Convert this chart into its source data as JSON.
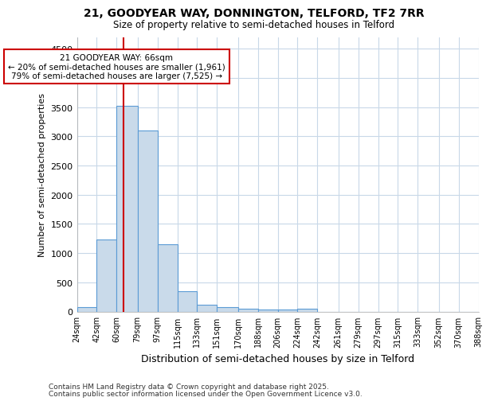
{
  "title1": "21, GOODYEAR WAY, DONNINGTON, TELFORD, TF2 7RR",
  "title2": "Size of property relative to semi-detached houses in Telford",
  "xlabel": "Distribution of semi-detached houses by size in Telford",
  "ylabel": "Number of semi-detached properties",
  "bin_labels": [
    "24sqm",
    "42sqm",
    "60sqm",
    "79sqm",
    "97sqm",
    "115sqm",
    "133sqm",
    "151sqm",
    "170sqm",
    "188sqm",
    "206sqm",
    "224sqm",
    "242sqm",
    "261sqm",
    "279sqm",
    "297sqm",
    "315sqm",
    "333sqm",
    "352sqm",
    "370sqm",
    "388sqm"
  ],
  "bin_edges": [
    24,
    42,
    60,
    79,
    97,
    115,
    133,
    151,
    170,
    188,
    206,
    224,
    242,
    261,
    279,
    297,
    315,
    333,
    352,
    370,
    388
  ],
  "bar_heights": [
    75,
    1230,
    3520,
    3100,
    1150,
    345,
    115,
    70,
    45,
    40,
    30,
    45,
    0,
    0,
    0,
    0,
    0,
    0,
    0,
    0
  ],
  "bar_color": "#c9daea",
  "bar_edge_color": "#5b9bd5",
  "property_sqm": 66,
  "annotation_line1": "21 GOODYEAR WAY: 66sqm",
  "annotation_line2": "← 20% of semi-detached houses are smaller (1,961)",
  "annotation_line3": "79% of semi-detached houses are larger (7,525) →",
  "red_line_color": "#cc0000",
  "annotation_box_color": "#ffffff",
  "annotation_box_edge": "#cc0000",
  "ylim": [
    0,
    4700
  ],
  "yticks": [
    0,
    500,
    1000,
    1500,
    2000,
    2500,
    3000,
    3500,
    4000,
    4500
  ],
  "footnote1": "Contains HM Land Registry data © Crown copyright and database right 2025.",
  "footnote2": "Contains public sector information licensed under the Open Government Licence v3.0.",
  "background_color": "#ffffff",
  "grid_color": "#c8d8e8"
}
